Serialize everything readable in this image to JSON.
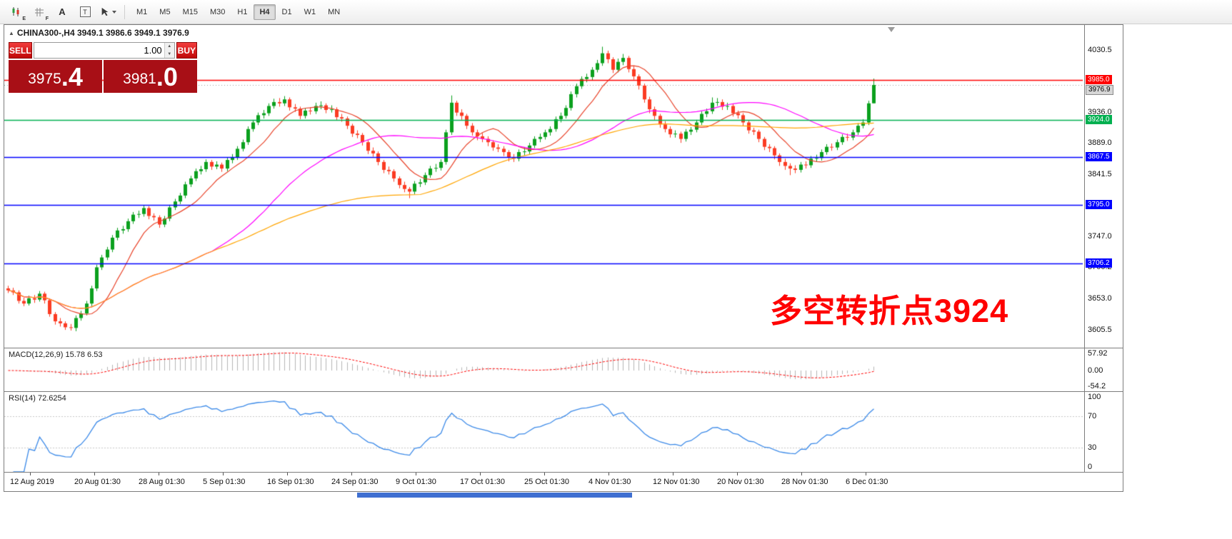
{
  "toolbar": {
    "tools": [
      {
        "name": "candlestick-style-icon",
        "tag": "E"
      },
      {
        "name": "grid-style-icon",
        "tag": "F"
      },
      {
        "name": "text-tool-icon",
        "tag": "A"
      },
      {
        "name": "label-tool-icon",
        "tag": "T"
      },
      {
        "name": "cursor-tool-icon",
        "tag": ""
      }
    ],
    "timeframes": [
      "M1",
      "M5",
      "M15",
      "M30",
      "H1",
      "H4",
      "D1",
      "W1",
      "MN"
    ],
    "active_timeframe": "H4"
  },
  "chart": {
    "symbol_label": "CHINA300-,H4 3949.1 3986.6 3949.1 3976.9",
    "trade_panel": {
      "sell_label": "SELL",
      "buy_label": "BUY",
      "volume": "1.00",
      "sell_price_int": "3975",
      "sell_price_frac": ".4",
      "buy_price_int": "3981",
      "buy_price_frac": ".0"
    },
    "annotation": {
      "text": "多空转折点3924",
      "color": "#ff0000"
    },
    "current_price": 3976.9,
    "current_price_label": "3976.9",
    "y_ticks": [
      "4030.5",
      "3936.0",
      "3889.0",
      "3841.5",
      "3747.0",
      "3700.2",
      "3653.0",
      "3605.5"
    ],
    "levels": [
      {
        "price": 3985.0,
        "label": "3985.0",
        "color": "#ff0000"
      },
      {
        "price": 3924.0,
        "label": "3924.0",
        "color": "#00b050"
      },
      {
        "price": 3867.5,
        "label": "3867.5",
        "color": "#0000ff"
      },
      {
        "price": 3795.0,
        "label": "3795.0",
        "color": "#0000ff"
      },
      {
        "price": 3706.2,
        "label": "3706.2",
        "color": "#0000ff"
      }
    ]
  },
  "chart_data": {
    "type": "candlestick",
    "symbol": "CHINA300-",
    "timeframe": "H4",
    "title": "CHINA300-,H4",
    "current_ohlc": {
      "open": 3949.1,
      "high": 3986.6,
      "low": 3949.1,
      "close": 3976.9
    },
    "y_domain": [
      3578,
      4068
    ],
    "bull_color": "#0ba01e",
    "bear_color": "#fb3b23",
    "candles": [
      [
        3668,
        3672,
        3661,
        3665
      ],
      [
        3665,
        3669,
        3658,
        3662
      ],
      [
        3662,
        3665,
        3645,
        3649
      ],
      [
        3649,
        3654,
        3641,
        3645
      ],
      [
        3645,
        3657,
        3642,
        3653
      ],
      [
        3653,
        3658,
        3646,
        3651
      ],
      [
        3651,
        3664,
        3648,
        3660
      ],
      [
        3660,
        3663,
        3645,
        3650
      ],
      [
        3650,
        3653,
        3625,
        3629
      ],
      [
        3629,
        3632,
        3613,
        3618
      ],
      [
        3618,
        3623,
        3610,
        3615
      ],
      [
        3615,
        3618,
        3605,
        3609
      ],
      [
        3609,
        3614,
        3604,
        3608
      ],
      [
        3608,
        3627,
        3603,
        3623
      ],
      [
        3623,
        3634,
        3619,
        3630
      ],
      [
        3630,
        3649,
        3627,
        3645
      ],
      [
        3645,
        3672,
        3641,
        3668
      ],
      [
        3668,
        3704,
        3664,
        3700
      ],
      [
        3700,
        3719,
        3696,
        3715
      ],
      [
        3715,
        3731,
        3711,
        3727
      ],
      [
        3727,
        3749,
        3723,
        3745
      ],
      [
        3745,
        3760,
        3741,
        3756
      ],
      [
        3756,
        3763,
        3751,
        3758
      ],
      [
        3758,
        3774,
        3754,
        3770
      ],
      [
        3770,
        3784,
        3766,
        3780
      ],
      [
        3780,
        3786,
        3775,
        3781
      ],
      [
        3781,
        3794,
        3777,
        3790
      ],
      [
        3790,
        3793,
        3773,
        3778
      ],
      [
        3778,
        3782,
        3771,
        3776
      ],
      [
        3776,
        3779,
        3760,
        3765
      ],
      [
        3765,
        3778,
        3761,
        3774
      ],
      [
        3774,
        3795,
        3770,
        3791
      ],
      [
        3791,
        3804,
        3787,
        3800
      ],
      [
        3800,
        3813,
        3796,
        3809
      ],
      [
        3809,
        3830,
        3805,
        3826
      ],
      [
        3826,
        3839,
        3822,
        3835
      ],
      [
        3835,
        3850,
        3831,
        3846
      ],
      [
        3846,
        3854,
        3841,
        3849
      ],
      [
        3849,
        3864,
        3845,
        3860
      ],
      [
        3860,
        3863,
        3848,
        3853
      ],
      [
        3853,
        3861,
        3849,
        3856
      ],
      [
        3856,
        3859,
        3845,
        3850
      ],
      [
        3850,
        3867,
        3846,
        3863
      ],
      [
        3863,
        3872,
        3858,
        3867
      ],
      [
        3867,
        3884,
        3863,
        3880
      ],
      [
        3880,
        3894,
        3876,
        3890
      ],
      [
        3890,
        3914,
        3886,
        3910
      ],
      [
        3910,
        3924,
        3906,
        3920
      ],
      [
        3920,
        3935,
        3916,
        3931
      ],
      [
        3931,
        3939,
        3926,
        3934
      ],
      [
        3934,
        3949,
        3930,
        3945
      ],
      [
        3945,
        3956,
        3941,
        3951
      ],
      [
        3951,
        3957,
        3944,
        3949
      ],
      [
        3949,
        3960,
        3945,
        3955
      ],
      [
        3955,
        3958,
        3938,
        3943
      ],
      [
        3943,
        3948,
        3936,
        3941
      ],
      [
        3941,
        3944,
        3925,
        3930
      ],
      [
        3930,
        3942,
        3926,
        3938
      ],
      [
        3938,
        3943,
        3932,
        3937
      ],
      [
        3937,
        3950,
        3933,
        3945
      ],
      [
        3945,
        3952,
        3940,
        3946
      ],
      [
        3946,
        3949,
        3934,
        3939
      ],
      [
        3939,
        3946,
        3935,
        3940
      ],
      [
        3940,
        3943,
        3923,
        3928
      ],
      [
        3928,
        3933,
        3921,
        3926
      ],
      [
        3926,
        3929,
        3910,
        3915
      ],
      [
        3915,
        3918,
        3898,
        3903
      ],
      [
        3903,
        3908,
        3896,
        3901
      ],
      [
        3901,
        3904,
        3885,
        3890
      ],
      [
        3890,
        3893,
        3872,
        3877
      ],
      [
        3877,
        3882,
        3868,
        3873
      ],
      [
        3873,
        3876,
        3855,
        3860
      ],
      [
        3860,
        3863,
        3843,
        3848
      ],
      [
        3848,
        3853,
        3841,
        3846
      ],
      [
        3846,
        3849,
        3830,
        3835
      ],
      [
        3835,
        3838,
        3820,
        3825
      ],
      [
        3825,
        3830,
        3814,
        3819
      ],
      [
        3819,
        3822,
        3805,
        3815
      ],
      [
        3815,
        3831,
        3811,
        3827
      ],
      [
        3827,
        3834,
        3822,
        3829
      ],
      [
        3829,
        3844,
        3825,
        3840
      ],
      [
        3840,
        3854,
        3836,
        3850
      ],
      [
        3850,
        3857,
        3845,
        3851
      ],
      [
        3851,
        3864,
        3847,
        3860
      ],
      [
        3860,
        3909,
        3856,
        3905
      ],
      [
        3905,
        3961,
        3901,
        3950
      ],
      [
        3950,
        3953,
        3930,
        3935
      ],
      [
        3935,
        3940,
        3924,
        3930
      ],
      [
        3930,
        3933,
        3910,
        3915
      ],
      [
        3915,
        3919,
        3900,
        3905
      ],
      [
        3905,
        3909,
        3893,
        3899
      ],
      [
        3899,
        3904,
        3890,
        3895
      ],
      [
        3895,
        3899,
        3884,
        3890
      ],
      [
        3890,
        3893,
        3877,
        3882
      ],
      [
        3882,
        3887,
        3875,
        3880
      ],
      [
        3880,
        3884,
        3869,
        3875
      ],
      [
        3875,
        3878,
        3861,
        3867
      ],
      [
        3867,
        3872,
        3860,
        3865
      ],
      [
        3865,
        3879,
        3861,
        3875
      ],
      [
        3875,
        3882,
        3870,
        3876
      ],
      [
        3876,
        3889,
        3872,
        3885
      ],
      [
        3885,
        3899,
        3881,
        3895
      ],
      [
        3895,
        3903,
        3890,
        3898
      ],
      [
        3898,
        3909,
        3894,
        3905
      ],
      [
        3905,
        3914,
        3900,
        3910
      ],
      [
        3910,
        3929,
        3906,
        3925
      ],
      [
        3925,
        3935,
        3920,
        3930
      ],
      [
        3930,
        3946,
        3926,
        3942
      ],
      [
        3942,
        3967,
        3938,
        3963
      ],
      [
        3963,
        3979,
        3958,
        3975
      ],
      [
        3975,
        3990,
        3971,
        3986
      ],
      [
        3986,
        3994,
        3981,
        3989
      ],
      [
        3989,
        4004,
        3984,
        4000
      ],
      [
        4000,
        4015,
        3996,
        4010
      ],
      [
        4010,
        4035,
        4006,
        4025
      ],
      [
        4025,
        4029,
        4010,
        4016
      ],
      [
        4016,
        4019,
        3995,
        4000
      ],
      [
        4000,
        4017,
        3996,
        4012
      ],
      [
        4012,
        4024,
        4007,
        4018
      ],
      [
        4018,
        4021,
        3996,
        4001
      ],
      [
        4001,
        4005,
        3985,
        3990
      ],
      [
        3990,
        3993,
        3970,
        3976
      ],
      [
        3976,
        3979,
        3950,
        3955
      ],
      [
        3955,
        3959,
        3934,
        3940
      ],
      [
        3940,
        3944,
        3924,
        3930
      ],
      [
        3930,
        3933,
        3912,
        3917
      ],
      [
        3917,
        3922,
        3905,
        3910
      ],
      [
        3910,
        3914,
        3897,
        3902
      ],
      [
        3902,
        3908,
        3897,
        3903
      ],
      [
        3903,
        3906,
        3889,
        3895
      ],
      [
        3895,
        3910,
        3891,
        3906
      ],
      [
        3906,
        3913,
        3901,
        3909
      ],
      [
        3909,
        3924,
        3905,
        3920
      ],
      [
        3920,
        3937,
        3916,
        3933
      ],
      [
        3933,
        3941,
        3928,
        3937
      ],
      [
        3937,
        3958,
        3933,
        3950
      ],
      [
        3950,
        3957,
        3945,
        3951
      ],
      [
        3951,
        3955,
        3939,
        3944
      ],
      [
        3944,
        3950,
        3939,
        3945
      ],
      [
        3945,
        3948,
        3929,
        3934
      ],
      [
        3934,
        3938,
        3926,
        3931
      ],
      [
        3931,
        3934,
        3915,
        3920
      ],
      [
        3920,
        3923,
        3903,
        3908
      ],
      [
        3908,
        3912,
        3901,
        3906
      ],
      [
        3906,
        3909,
        3890,
        3895
      ],
      [
        3895,
        3898,
        3878,
        3883
      ],
      [
        3883,
        3887,
        3875,
        3881
      ],
      [
        3881,
        3884,
        3864,
        3870
      ],
      [
        3870,
        3873,
        3854,
        3860
      ],
      [
        3860,
        3865,
        3848,
        3854
      ],
      [
        3854,
        3858,
        3840,
        3850
      ],
      [
        3850,
        3855,
        3843,
        3848
      ],
      [
        3848,
        3860,
        3844,
        3856
      ],
      [
        3856,
        3861,
        3850,
        3855
      ],
      [
        3855,
        3869,
        3851,
        3865
      ],
      [
        3865,
        3871,
        3860,
        3866
      ],
      [
        3866,
        3879,
        3862,
        3875
      ],
      [
        3875,
        3887,
        3871,
        3883
      ],
      [
        3883,
        3888,
        3877,
        3882
      ],
      [
        3882,
        3894,
        3878,
        3890
      ],
      [
        3890,
        3902,
        3886,
        3898
      ],
      [
        3898,
        3903,
        3892,
        3897
      ],
      [
        3897,
        3909,
        3893,
        3905
      ],
      [
        3905,
        3919,
        3901,
        3915
      ],
      [
        3915,
        3925,
        3911,
        3920
      ],
      [
        3920,
        3953,
        3916,
        3949
      ],
      [
        3949.1,
        3986.6,
        3949.1,
        3976.9
      ]
    ],
    "moving_averages": [
      {
        "name": "ma-fast",
        "period": 10,
        "color": "#e8432a"
      },
      {
        "name": "ma-mid",
        "period": 40,
        "color": "#ff00ff"
      },
      {
        "name": "ma-slow",
        "period": 80,
        "color": "#ffa500"
      }
    ],
    "x_labels": [
      "12 Aug 2019",
      "20 Aug 01:30",
      "28 Aug 01:30",
      "5 Sep 01:30",
      "16 Sep 01:30",
      "24 Sep 01:30",
      "9 Oct 01:30",
      "17 Oct 01:30",
      "25 Oct 01:30",
      "4 Nov 01:30",
      "12 Nov 01:30",
      "20 Nov 01:30",
      "28 Nov 01:30",
      "6 Dec 01:30"
    ],
    "macd": {
      "label": "MACD(12,26,9) 15.78 6.53",
      "fast": 12,
      "slow": 26,
      "signal": 9,
      "values_text": [
        "15.78",
        "6.53"
      ],
      "axis_labels": [
        "57.92",
        "0.00",
        "-54.2"
      ],
      "range": [
        -54.2,
        57.92
      ],
      "histogram_color": "#b4b4b4",
      "signal_color": "#ff0000"
    },
    "rsi": {
      "label": "RSI(14) 72.6254",
      "period": 14,
      "value": 72.6254,
      "axis_labels": [
        "100",
        "70",
        "30",
        "0"
      ],
      "levels": [
        70,
        30
      ],
      "line_color": "#3c8ae8",
      "level_color": "#c6c6c6"
    }
  }
}
